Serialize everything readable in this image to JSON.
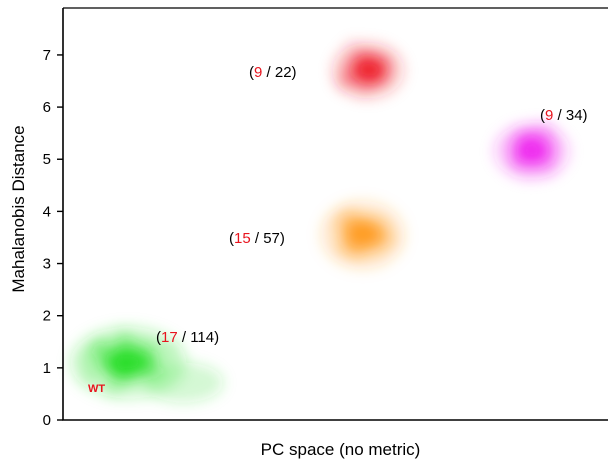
{
  "chart_data": {
    "type": "scatter",
    "title": "",
    "xlabel": "PC space (no metric)",
    "ylabel": "Mahalanobis Distance",
    "ylim": [
      0,
      7.9
    ],
    "yticks": [
      "0",
      "1",
      "2",
      "3",
      "4",
      "5",
      "6",
      "7"
    ],
    "xticks": [],
    "grid": false,
    "clusters": [
      {
        "color": "#22dd22",
        "center": [
          0.12,
          1.1
        ],
        "annotation_red": "17",
        "annotation_rest": " / 114",
        "label": "WT"
      },
      {
        "color": "#ff9a1e",
        "center": [
          0.55,
          3.55
        ],
        "annotation_red": "15",
        "annotation_rest": " / 57"
      },
      {
        "color": "#ee1c2a",
        "center": [
          0.56,
          6.7
        ],
        "annotation_red": "9",
        "annotation_rest": " / 22"
      },
      {
        "color": "#ee22ee",
        "center": [
          0.86,
          5.15
        ],
        "annotation_red": "9",
        "annotation_rest": " / 34"
      }
    ]
  }
}
